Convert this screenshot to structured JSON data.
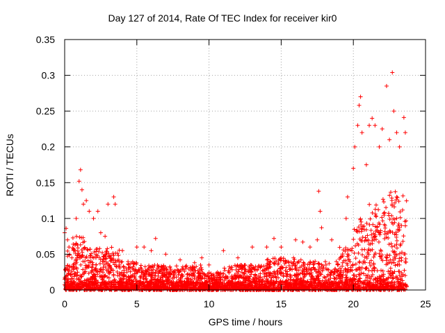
{
  "chart_data": {
    "type": "scatter",
    "title": "Day 127 of 2014, Rate Of TEC Index for receiver kir0",
    "xlabel": "GPS time / hours",
    "ylabel": "ROTI / TECUs",
    "xlim": [
      0,
      25
    ],
    "ylim": [
      0,
      0.35
    ],
    "xticks": [
      "0",
      "5",
      "10",
      "15",
      "20",
      "25"
    ],
    "yticks": [
      "0",
      "0.05",
      "0.1",
      "0.15",
      "0.2",
      "0.25",
      "0.3",
      "0.35"
    ],
    "grid": true,
    "marker": "+",
    "color": "#ff0000",
    "series": [
      {
        "name": "ROTI",
        "points": [
          [
            0.0,
            0.08
          ],
          [
            0.1,
            0.086
          ],
          [
            0.2,
            0.07
          ],
          [
            0.3,
            0.06
          ],
          [
            0.5,
            0.045
          ],
          [
            0.8,
            0.1
          ],
          [
            1.0,
            0.152
          ],
          [
            1.1,
            0.168
          ],
          [
            1.2,
            0.14
          ],
          [
            1.3,
            0.12
          ],
          [
            1.5,
            0.125
          ],
          [
            1.7,
            0.11
          ],
          [
            2.0,
            0.1
          ],
          [
            2.3,
            0.11
          ],
          [
            2.5,
            0.08
          ],
          [
            2.8,
            0.075
          ],
          [
            3.0,
            0.12
          ],
          [
            3.4,
            0.13
          ],
          [
            3.5,
            0.12
          ],
          [
            4.0,
            0.055
          ],
          [
            5.0,
            0.06
          ],
          [
            5.5,
            0.06
          ],
          [
            6.0,
            0.055
          ],
          [
            6.3,
            0.072
          ],
          [
            7.0,
            0.05
          ],
          [
            8.0,
            0.042
          ],
          [
            9.0,
            0.038
          ],
          [
            9.5,
            0.045
          ],
          [
            10.0,
            0.035
          ],
          [
            11.0,
            0.055
          ],
          [
            12.0,
            0.045
          ],
          [
            13.0,
            0.06
          ],
          [
            14.0,
            0.06
          ],
          [
            14.5,
            0.072
          ],
          [
            15.0,
            0.06
          ],
          [
            16.0,
            0.07
          ],
          [
            16.5,
            0.067
          ],
          [
            17.0,
            0.06
          ],
          [
            17.5,
            0.07
          ],
          [
            17.6,
            0.138
          ],
          [
            17.7,
            0.11
          ],
          [
            17.8,
            0.087
          ],
          [
            18.5,
            0.07
          ],
          [
            19.5,
            0.1
          ],
          [
            19.6,
            0.13
          ],
          [
            20.0,
            0.17
          ],
          [
            20.1,
            0.2
          ],
          [
            20.3,
            0.23
          ],
          [
            20.4,
            0.258
          ],
          [
            20.5,
            0.27
          ],
          [
            20.6,
            0.22
          ],
          [
            20.9,
            0.175
          ],
          [
            21.1,
            0.23
          ],
          [
            21.3,
            0.24
          ],
          [
            21.5,
            0.23
          ],
          [
            21.8,
            0.2
          ],
          [
            22.0,
            0.225
          ],
          [
            22.3,
            0.285
          ],
          [
            22.5,
            0.21
          ],
          [
            22.7,
            0.304
          ],
          [
            22.8,
            0.25
          ],
          [
            23.0,
            0.22
          ],
          [
            23.2,
            0.2
          ],
          [
            23.5,
            0.241
          ],
          [
            23.6,
            0.22
          ]
        ]
      }
    ]
  }
}
